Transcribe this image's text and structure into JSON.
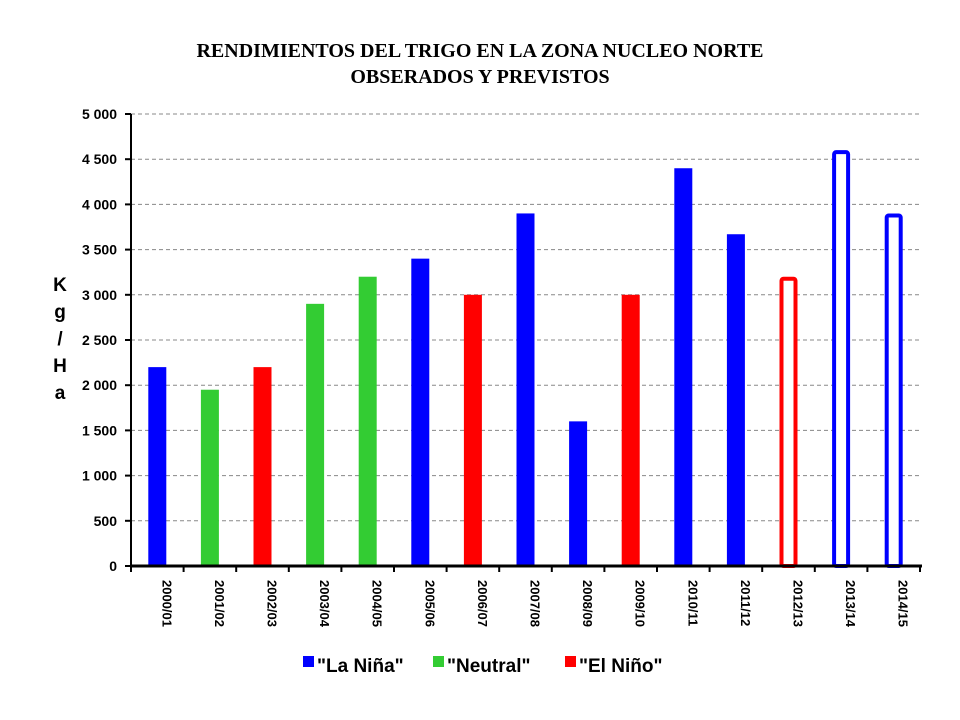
{
  "chart_data": {
    "type": "bar",
    "title_lines": [
      "RENDIMIENTOS DEL TRIGO EN LA ZONA NUCLEO NORTE",
      "OBSERADOS Y PREVISTOS"
    ],
    "ylabel": "Kg/Ha",
    "ylim": [
      0,
      5000
    ],
    "yticks": [
      "0",
      "500",
      "1 000",
      "1 500",
      "2 000",
      "2 500",
      "3 000",
      "3 500",
      "4 000",
      "4 500",
      "5 000"
    ],
    "grid": true,
    "legend_position": "bottom",
    "categories": [
      "2000/01",
      "2001/02",
      "2002/03",
      "2003/04",
      "2004/05",
      "2005/06",
      "2006/07",
      "2007/08",
      "2008/09",
      "2009/10",
      "2010/11",
      "2011/12",
      "2012/13",
      "2013/14",
      "2014/15"
    ],
    "values": [
      2200,
      1950,
      2200,
      2900,
      3200,
      3400,
      3000,
      3900,
      1600,
      3000,
      4400,
      3670,
      3200,
      4600,
      3900
    ],
    "classes": [
      "La Niña",
      "Neutral",
      "El Niño",
      "Neutral",
      "Neutral",
      "La Niña",
      "El Niño",
      "La Niña",
      "La Niña",
      "El Niño",
      "La Niña",
      "La Niña",
      "El Niño",
      "La Niña",
      "La Niña"
    ],
    "forecast": [
      false,
      false,
      false,
      false,
      false,
      false,
      false,
      false,
      false,
      false,
      false,
      false,
      true,
      true,
      true
    ],
    "legend": [
      {
        "label": "\"La Niña\"",
        "class": "La Niña",
        "color": "#0000ff"
      },
      {
        "label": "\"Neutral\"",
        "class": "Neutral",
        "color": "#33cc33"
      },
      {
        "label": "\"El Niño\"",
        "class": "El Niño",
        "color": "#ff0000"
      }
    ]
  }
}
